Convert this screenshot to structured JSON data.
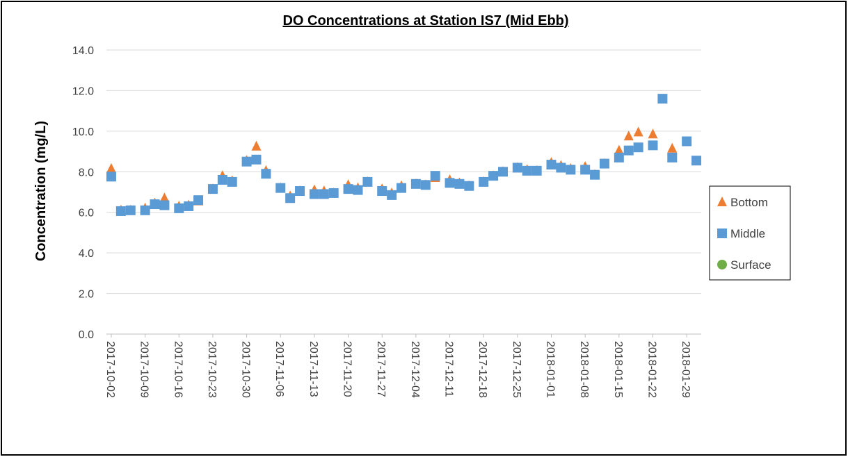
{
  "chart_data": {
    "type": "scatter",
    "title": "DO Concentrations at Station IS7 (Mid Ebb)",
    "y_label": "Concentration (mg/L)",
    "x": [
      "2017-10-02",
      "2017-10-04",
      "2017-10-06",
      "2017-10-09",
      "2017-10-11",
      "2017-10-13",
      "2017-10-16",
      "2017-10-18",
      "2017-10-20",
      "2017-10-23",
      "2017-10-25",
      "2017-10-27",
      "2017-10-30",
      "2017-11-01",
      "2017-11-03",
      "2017-11-06",
      "2017-11-08",
      "2017-11-10",
      "2017-11-13",
      "2017-11-15",
      "2017-11-17",
      "2017-11-20",
      "2017-11-22",
      "2017-11-24",
      "2017-11-27",
      "2017-11-29",
      "2017-12-01",
      "2017-12-04",
      "2017-12-06",
      "2017-12-08",
      "2017-12-11",
      "2017-12-13",
      "2017-12-15",
      "2017-12-18",
      "2017-12-20",
      "2017-12-22",
      "2017-12-25",
      "2017-12-27",
      "2017-12-29",
      "2018-01-01",
      "2018-01-03",
      "2018-01-05",
      "2018-01-08",
      "2018-01-10",
      "2018-01-12",
      "2018-01-15",
      "2018-01-17",
      "2018-01-19",
      "2018-01-22",
      "2018-01-24",
      "2018-01-26",
      "2018-01-29",
      "2018-01-31"
    ],
    "series": [
      {
        "name": "Bottom",
        "color": "#ed7d31",
        "marker": "triangle",
        "values": [
          8.15,
          6.1,
          6.1,
          6.2,
          6.45,
          6.7,
          6.3,
          6.35,
          6.55,
          7.15,
          7.8,
          7.55,
          8.55,
          9.25,
          8.05,
          7.2,
          6.8,
          7.05,
          7.1,
          7.05,
          6.95,
          7.35,
          7.2,
          7.5,
          7.15,
          6.95,
          7.3,
          7.4,
          7.35,
          7.7,
          7.6,
          7.45,
          7.3,
          7.5,
          7.8,
          8.0,
          8.2,
          8.1,
          8.05,
          8.45,
          8.3,
          8.15,
          8.25,
          7.85,
          8.4,
          9.05,
          9.75,
          9.95,
          9.85,
          null,
          9.15,
          null,
          null
        ]
      },
      {
        "name": "Middle",
        "color": "#5b9bd5",
        "marker": "square",
        "values": [
          7.76,
          6.06,
          6.1,
          6.1,
          6.4,
          6.35,
          6.2,
          6.3,
          6.6,
          7.15,
          7.6,
          7.5,
          8.5,
          8.6,
          7.9,
          7.2,
          6.7,
          7.05,
          6.9,
          6.9,
          6.95,
          7.15,
          7.1,
          7.5,
          7.05,
          6.85,
          7.2,
          7.4,
          7.35,
          7.8,
          7.45,
          7.4,
          7.3,
          7.5,
          7.8,
          8.0,
          8.2,
          8.05,
          8.05,
          8.35,
          8.2,
          8.1,
          8.1,
          7.85,
          8.4,
          8.7,
          9.05,
          9.2,
          9.3,
          11.6,
          8.7,
          9.5,
          8.55
        ]
      },
      {
        "name": "Surface",
        "color": "#70ad47",
        "marker": "circle",
        "values": [
          null,
          null,
          null,
          null,
          null,
          null,
          null,
          null,
          null,
          null,
          null,
          null,
          null,
          null,
          null,
          null,
          null,
          null,
          null,
          null,
          null,
          null,
          null,
          null,
          null,
          null,
          null,
          null,
          null,
          null,
          null,
          null,
          null,
          null,
          null,
          null,
          null,
          null,
          null,
          null,
          null,
          null,
          null,
          null,
          null,
          null,
          null,
          null,
          null,
          null,
          null,
          null,
          null
        ]
      }
    ],
    "xlim": [
      "2017-10-01",
      "2018-02-01"
    ],
    "xticks": [
      "2017-10-02",
      "2017-10-09",
      "2017-10-16",
      "2017-10-23",
      "2017-10-30",
      "2017-11-06",
      "2017-11-13",
      "2017-11-20",
      "2017-11-27",
      "2017-12-04",
      "2017-12-11",
      "2017-12-18",
      "2017-12-25",
      "2018-01-01",
      "2018-01-08",
      "2018-01-15",
      "2018-01-22",
      "2018-01-29"
    ],
    "ylim": [
      0,
      14
    ],
    "yticks": [
      {
        "value": 0,
        "label": "0.0"
      },
      {
        "value": 2,
        "label": "2.0"
      },
      {
        "value": 4,
        "label": "4.0"
      },
      {
        "value": 6,
        "label": "6.0"
      },
      {
        "value": 8,
        "label": "8.0"
      },
      {
        "value": 10,
        "label": "10.0"
      },
      {
        "value": 12,
        "label": "12.0"
      },
      {
        "value": 14,
        "label": "14.0"
      }
    ],
    "grid": true,
    "legend": "right"
  }
}
